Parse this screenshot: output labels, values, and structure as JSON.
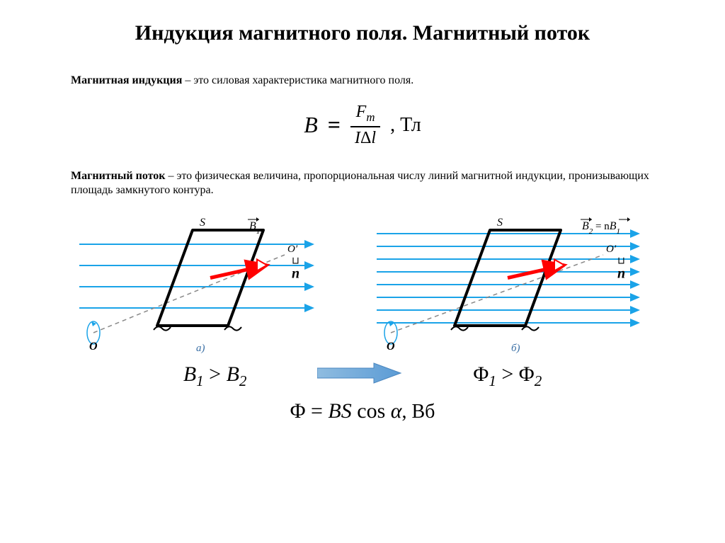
{
  "title": "Индукция магнитного поля. Магнитный поток",
  "def1_term": "Магнитная индукция",
  "def1_text": " – это силовая характеристика магнитного поля.",
  "def2_term": "Магнитный поток",
  "def2_text": " – это физическая величина, пропорциональная числу линий магнитной индукции, пронизывающих площадь замкнутого контура.",
  "formulaB": {
    "left": "B",
    "eq": "=",
    "num_F": "F",
    "num_sub": "m",
    "den_I": "I",
    "den_delta": "Δ",
    "den_l": "l",
    "unit": ", Тл"
  },
  "diagram": {
    "left": {
      "S": "S",
      "B": "B",
      "Bsub": "1",
      "n": "n",
      "nvec_box": "⊔",
      "O": "O",
      "Oprime": "O′",
      "caption": "а)",
      "arrow_rows": [
        45,
        75,
        105,
        135
      ],
      "colors": {
        "field_arrow": "#1aa3e8",
        "loop": "#000000",
        "axis": "#888888",
        "normal_arrow": "#ff0000"
      }
    },
    "right": {
      "S": "S",
      "B": "B",
      "Bsub": "2",
      "rel": " = n",
      "B1": "B",
      "B1sub": "1",
      "n": "n",
      "nvec_box": "⊔",
      "O": "O",
      "Oprime": "O′",
      "caption": "б)",
      "arrow_rows": [
        30,
        48,
        66,
        84,
        102,
        120,
        138,
        156
      ],
      "colors": {
        "field_arrow": "#1aa3e8",
        "loop": "#000000",
        "axis": "#888888",
        "normal_arrow": "#ff0000"
      }
    }
  },
  "inequalities": {
    "B_lhs": "B",
    "B_lsub": "1",
    "gt": " > ",
    "B_rhs": "B",
    "B_rsub": "2",
    "Phi_lhs": "Φ",
    "Phi_lsub": "1",
    "Phi_rhs": "Φ",
    "Phi_rsub": "2",
    "arrow_color": "#5b9bd5"
  },
  "formulaPhi": {
    "Phi": "Φ",
    "eq": " = ",
    "B": "B",
    "S": "S",
    "cos": " cos ",
    "alpha": "α",
    "unit": ", Вб"
  }
}
